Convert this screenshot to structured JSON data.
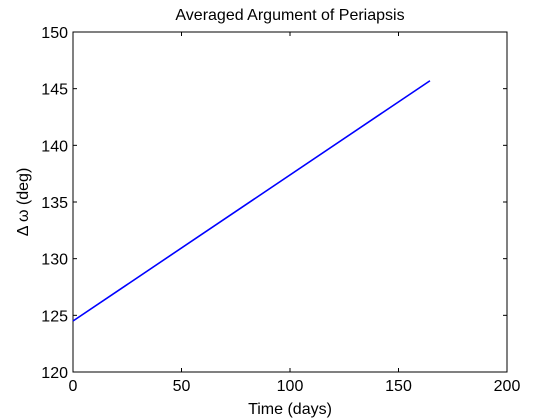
{
  "chart_data": {
    "type": "line",
    "title": "Averaged Argument of Periapsis",
    "xlabel": "Time (days)",
    "ylabel": "Δ ω (deg)",
    "xlim": [
      0,
      200
    ],
    "ylim": [
      120,
      150
    ],
    "xticks": [
      0,
      50,
      100,
      150,
      200
    ],
    "yticks": [
      120,
      125,
      130,
      135,
      140,
      145,
      150
    ],
    "grid": false,
    "series": [
      {
        "color": "#0000ff",
        "x": [
          0,
          164.5
        ],
        "y": [
          124.5,
          145.7
        ]
      }
    ]
  }
}
